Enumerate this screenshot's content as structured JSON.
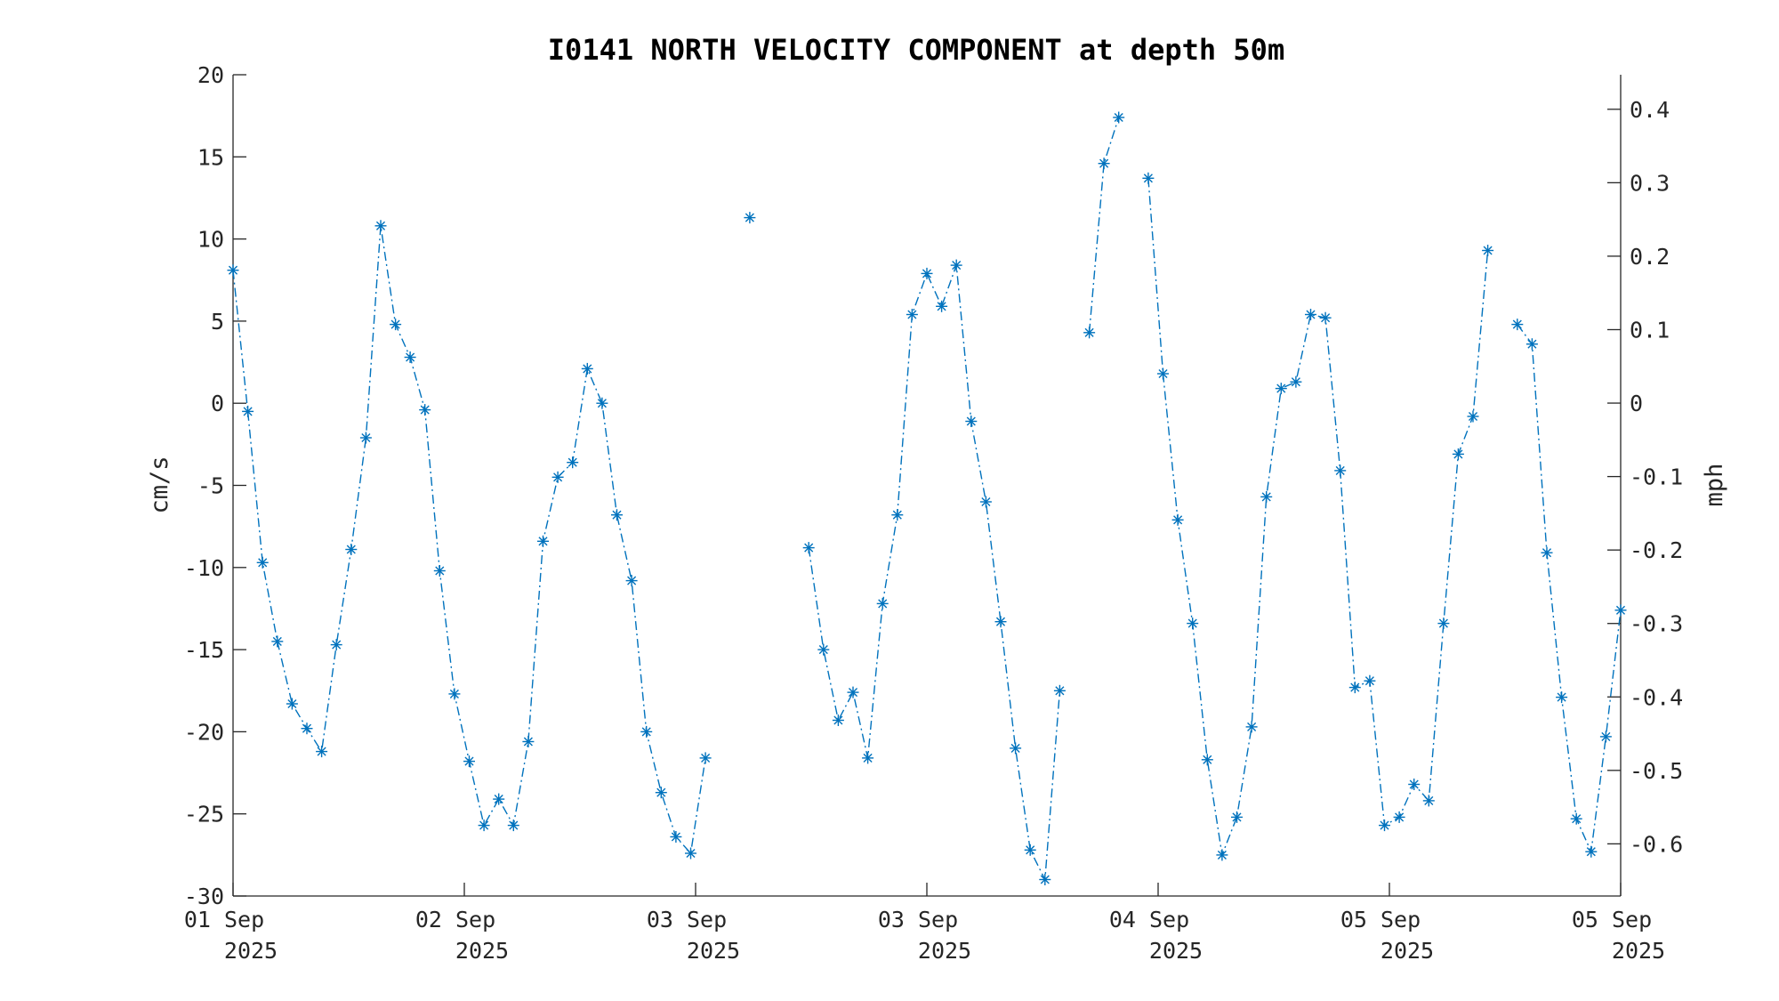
{
  "chart_data": {
    "type": "line",
    "title": "I0141 NORTH VELOCITY COMPONENT at depth 50m",
    "ylabel_left": "cm/s",
    "ylabel_right": "mph",
    "ylim": [
      -30,
      20
    ],
    "y2lim": [
      -0.671,
      0.447
    ],
    "y_ticks": [
      "20",
      "15",
      "10",
      "5",
      "0",
      "-5",
      "-10",
      "-15",
      "-20",
      "-25",
      "-30"
    ],
    "y2_ticks": [
      "0.4",
      "0.3",
      "0.2",
      "0.1",
      "0",
      "-0.1",
      "-0.2",
      "-0.3",
      "-0.4",
      "-0.5",
      "-0.6"
    ],
    "x_ticks": [
      {
        "day": "01 Sep",
        "year": "2025"
      },
      {
        "day": "02 Sep",
        "year": "2025"
      },
      {
        "day": "03 Sep",
        "year": "2025"
      },
      {
        "day": "03 Sep",
        "year": "2025"
      },
      {
        "day": "04 Sep",
        "year": "2025"
      },
      {
        "day": "05 Sep",
        "year": "2025"
      },
      {
        "day": "05 Sep",
        "year": "2025"
      }
    ],
    "xlim": [
      0,
      94
    ],
    "grid": false,
    "line_style": "dash-dot",
    "marker": "asterisk",
    "series_color": "#0072BD",
    "series": [
      {
        "x": [
          0,
          1,
          2,
          3,
          4,
          5,
          6,
          7,
          8,
          9,
          10,
          11,
          12,
          13,
          14,
          15,
          16,
          17,
          18,
          19,
          20,
          21,
          22,
          23,
          24,
          25,
          26,
          27,
          28,
          29,
          30,
          31,
          32,
          33,
          34,
          35,
          36,
          37,
          38,
          39,
          40,
          41,
          42,
          43,
          44,
          45,
          46,
          47,
          48,
          49,
          50,
          51,
          52,
          53,
          54,
          55,
          56,
          57,
          58,
          59,
          60,
          61,
          62,
          63,
          64,
          65,
          66,
          67,
          68,
          69,
          70,
          71,
          72,
          73,
          74,
          75,
          76,
          77,
          78,
          79,
          80,
          81,
          82,
          83,
          84,
          85,
          86,
          87,
          88,
          89,
          90,
          91,
          92,
          93,
          94
        ],
        "values": [
          8.1,
          -0.5,
          -9.7,
          -14.5,
          -18.3,
          -19.8,
          -21.2,
          -14.7,
          -8.9,
          -2.1,
          10.8,
          4.8,
          2.8,
          -0.4,
          -10.2,
          -17.7,
          -21.8,
          -25.7,
          -24.1,
          -25.7,
          -20.6,
          -8.4,
          -4.5,
          -3.6,
          2.1,
          0.0,
          -6.8,
          -10.8,
          -20.0,
          -23.7,
          -26.4,
          -27.4,
          -21.6,
          null,
          null,
          11.3,
          null,
          null,
          null,
          -8.8,
          -15.0,
          -19.3,
          -17.6,
          -21.6,
          -12.2,
          -6.8,
          5.4,
          7.9,
          5.9,
          8.4,
          -1.1,
          -6.0,
          -13.3,
          -21.0,
          -27.2,
          -29.0,
          -17.5,
          null,
          4.3,
          14.6,
          17.4,
          null,
          13.7,
          1.8,
          -7.1,
          -13.4,
          -21.7,
          -27.5,
          -25.2,
          -19.7,
          -5.7,
          0.9,
          1.3,
          5.4,
          5.2,
          -4.1,
          -17.3,
          -16.9,
          -25.7,
          -25.2,
          -23.2,
          -24.2,
          -13.4,
          -3.1,
          -0.8,
          9.3,
          null,
          4.8,
          3.6,
          -9.1,
          -17.9,
          -25.3,
          -27.3,
          -20.3,
          -12.6
        ]
      }
    ]
  }
}
